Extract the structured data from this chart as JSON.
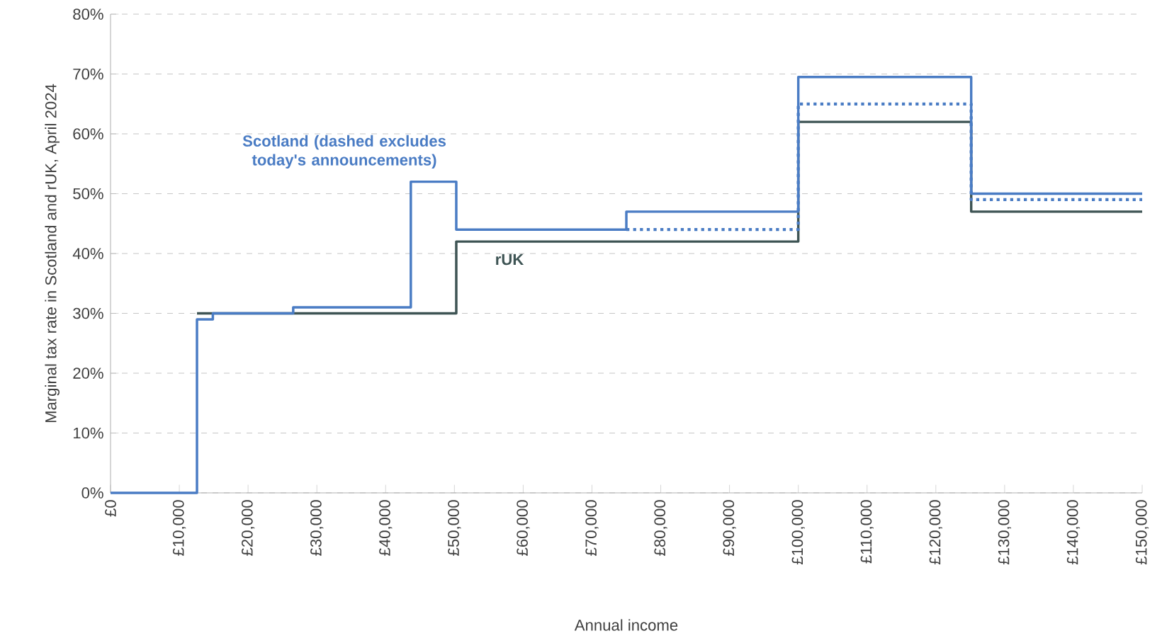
{
  "chart_data": {
    "type": "step",
    "xlabel": "Annual income",
    "ylabel": "Marginal tax rate in Scotland and rUK, April 2024",
    "xlim": [
      0,
      150000
    ],
    "ylim": [
      0,
      80
    ],
    "xticks": [
      {
        "value": 0,
        "label": "£0"
      },
      {
        "value": 10000,
        "label": "£10,000"
      },
      {
        "value": 20000,
        "label": "£20,000"
      },
      {
        "value": 30000,
        "label": "£30,000"
      },
      {
        "value": 40000,
        "label": "£40,000"
      },
      {
        "value": 50000,
        "label": "£50,000"
      },
      {
        "value": 60000,
        "label": "£60,000"
      },
      {
        "value": 70000,
        "label": "£70,000"
      },
      {
        "value": 80000,
        "label": "£80,000"
      },
      {
        "value": 90000,
        "label": "£90,000"
      },
      {
        "value": 100000,
        "label": "£100,000"
      },
      {
        "value": 110000,
        "label": "£110,000"
      },
      {
        "value": 120000,
        "label": "£120,000"
      },
      {
        "value": 130000,
        "label": "£130,000"
      },
      {
        "value": 140000,
        "label": "£140,000"
      },
      {
        "value": 150000,
        "label": "£150,000"
      }
    ],
    "yticks": [
      {
        "value": 0,
        "label": "0%"
      },
      {
        "value": 10,
        "label": "10%"
      },
      {
        "value": 20,
        "label": "20%"
      },
      {
        "value": 30,
        "label": "30%"
      },
      {
        "value": 40,
        "label": "40%"
      },
      {
        "value": 50,
        "label": "50%"
      },
      {
        "value": 60,
        "label": "60%"
      },
      {
        "value": 70,
        "label": "70%"
      },
      {
        "value": 80,
        "label": "80%"
      }
    ],
    "grid": "y",
    "series": [
      {
        "name": "rUK",
        "color": "#3e5454",
        "line_style": "solid",
        "x": [
          12570,
          50270,
          100000,
          125140,
          150000
        ],
        "values": [
          30,
          42,
          62,
          47,
          47
        ]
      },
      {
        "name": "Scotland (dashed excludes today's announcements)",
        "color": "#4a7cc4",
        "line_style": "solid",
        "x": [
          0,
          12570,
          14876,
          26561,
          43662,
          50270,
          75000,
          100000,
          125140,
          150000
        ],
        "values": [
          0,
          29,
          30,
          31,
          52,
          44,
          47,
          69.5,
          50,
          50
        ]
      },
      {
        "color": "#4a7cc4",
        "line_style": "dotted",
        "x": [
          75000,
          100000,
          125140,
          150000
        ],
        "values": [
          44,
          65,
          49,
          49
        ]
      }
    ]
  }
}
